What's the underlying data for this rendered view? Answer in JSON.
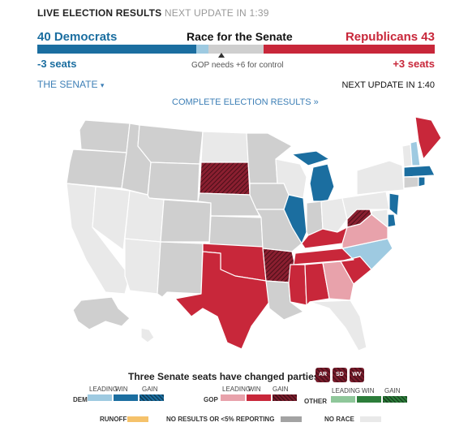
{
  "header": {
    "live_label": "LIVE ELECTION RESULTS",
    "next_update": "NEXT UPDATE IN 1:39",
    "race_title": "Race for the Senate",
    "dem_count": "40 Democrats",
    "rep_count": "Republicans 43",
    "dem_change": "-3 seats",
    "rep_change": "+3 seats",
    "control_note": "GOP needs +6 for control",
    "seats": {
      "dem_won": 40,
      "dem_leading": 3,
      "undecided": 14,
      "rep_leading": 0,
      "rep_won": 43
    }
  },
  "controls": {
    "dropdown_label": "THE SENATE",
    "dropdown_caret": "▾",
    "next_update_2": "NEXT UPDATE IN 1:40",
    "complete_results": "COMPLETE ELECTION RESULTS »"
  },
  "changed": {
    "text": "Three Senate seats have changed parties:",
    "states": [
      "AR",
      "SD",
      "WV"
    ]
  },
  "legend": {
    "dem": "DEM",
    "gop": "GOP",
    "other": "OTHER",
    "leading": "LEADING",
    "win": "WIN",
    "gain": "GAIN",
    "runoff": "RUNOFF",
    "no_results": "NO RESULTS OR <5% REPORTING",
    "no_race": "NO RACE"
  },
  "colors": {
    "dem_win": "#1b6ea0",
    "dem_lead": "#9ecae1",
    "rep_win": "#c8273a",
    "rep_lead": "#e8a2ab",
    "rep_gain": "#7c1c2c",
    "other_lead": "#8fc79a",
    "other_win": "#2c7d3a",
    "runoff": "#f5c26b",
    "no_results": "#a3a3a3",
    "no_race": "#e9e9e9",
    "undecided": "#cfcfcf"
  }
}
